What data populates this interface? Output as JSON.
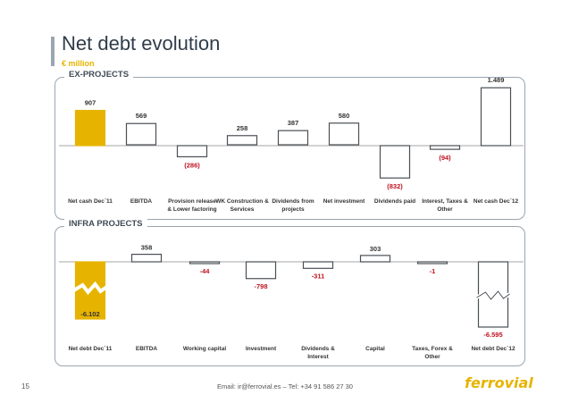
{
  "page": {
    "title": "Net debt evolution",
    "subtitle": "€ million",
    "page_number": "15",
    "footer_email": "Email: ir@ferrovial.es – Tel: +34 91 586 27 30",
    "logo_text": "ferrovial"
  },
  "colors": {
    "accent": "#e6b400",
    "negative_label": "#c0121f",
    "bar_stroke": "#4a4f55",
    "panel_border": "#9aa6b0"
  },
  "chart_data": [
    {
      "type": "bar",
      "title": "EX-PROJECTS",
      "categories": [
        "Net cash Dec`11",
        "EBITDA",
        "Provision release & Lower factoring",
        "WK Construction & Services",
        "Dividends from projects",
        "Net investment",
        "Dividends paid",
        "Interest, Taxes & Other",
        "Net cash Dec`12"
      ],
      "values": [
        907,
        569,
        -286,
        258,
        387,
        580,
        -832,
        -94,
        1489
      ],
      "value_labels": [
        "907",
        "569",
        "(286)",
        "258",
        "387",
        "580",
        "(832)",
        "(94)",
        "1.489"
      ],
      "highlight": [
        0
      ]
    },
    {
      "type": "bar",
      "title": "INFRA PROJECTS",
      "categories": [
        "Net debt Dec`11",
        "EBITDA",
        "Working capital",
        "Investment",
        "Dividends & Interest",
        "Capital",
        "Taxes, Forex & Other",
        "Net debt Dec`12"
      ],
      "values": [
        -6102,
        358,
        -44,
        -798,
        -311,
        303,
        -1,
        -6595
      ],
      "value_labels": [
        "-6.102",
        "358",
        "-44",
        "-798",
        "-311",
        "303",
        "-1",
        "-6.595"
      ],
      "highlight": [
        0
      ],
      "axis_break": true
    }
  ]
}
